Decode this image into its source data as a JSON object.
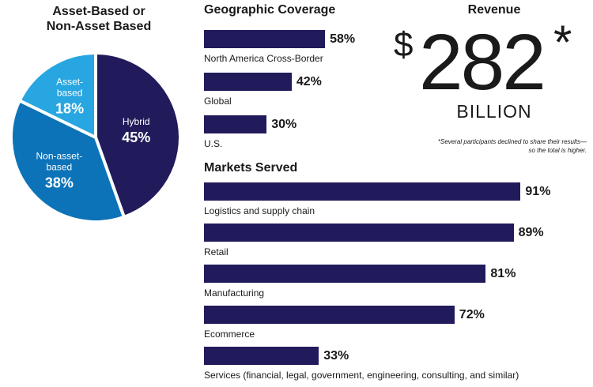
{
  "colors": {
    "navy": "#211b5b",
    "blue": "#0d73b8",
    "lightblue": "#27a6e1",
    "text": "#1a1a1a"
  },
  "pie": {
    "title_line1": "Asset-Based or",
    "title_line2": "Non-Asset Based"
  },
  "geo": {
    "title": "Geographic Coverage"
  },
  "markets": {
    "title": "Markets Served"
  },
  "revenue": {
    "title": "Revenue",
    "currency": "$",
    "amount": "282",
    "asterisk": "*",
    "unit": "BILLION",
    "note_line1": "*Several participants declined to share their results—",
    "note_line2": "so the total is higher."
  },
  "chart_data": [
    {
      "type": "pie",
      "title": "Asset-Based or Non-Asset Based",
      "slices": [
        {
          "label": "Hybrid",
          "value": 45,
          "display": "45%",
          "color": "#211b5b"
        },
        {
          "label": "Non-asset-based",
          "label_lines": [
            "Non-asset-",
            "based"
          ],
          "value": 38,
          "display": "38%",
          "color": "#0d73b8"
        },
        {
          "label": "Asset-based",
          "label_lines": [
            "Asset-",
            "based"
          ],
          "value": 18,
          "display": "18%",
          "color": "#27a6e1"
        }
      ]
    },
    {
      "type": "bar",
      "orientation": "horizontal",
      "title": "Geographic Coverage",
      "xlim": [
        0,
        100
      ],
      "categories": [
        "North America Cross-Border",
        "Global",
        "U.S."
      ],
      "values": [
        58,
        42,
        30
      ],
      "labels": [
        "58%",
        "42%",
        "30%"
      ]
    },
    {
      "type": "bar",
      "orientation": "horizontal",
      "title": "Markets Served",
      "xlim": [
        0,
        100
      ],
      "categories": [
        "Logistics and supply chain",
        "Retail",
        "Manufacturing",
        "Ecommerce",
        "Services (financial, legal, government, engineering, consulting, and similar)"
      ],
      "values": [
        91,
        89,
        81,
        72,
        33
      ],
      "labels": [
        "91%",
        "89%",
        "81%",
        "72%",
        "33%"
      ]
    }
  ]
}
